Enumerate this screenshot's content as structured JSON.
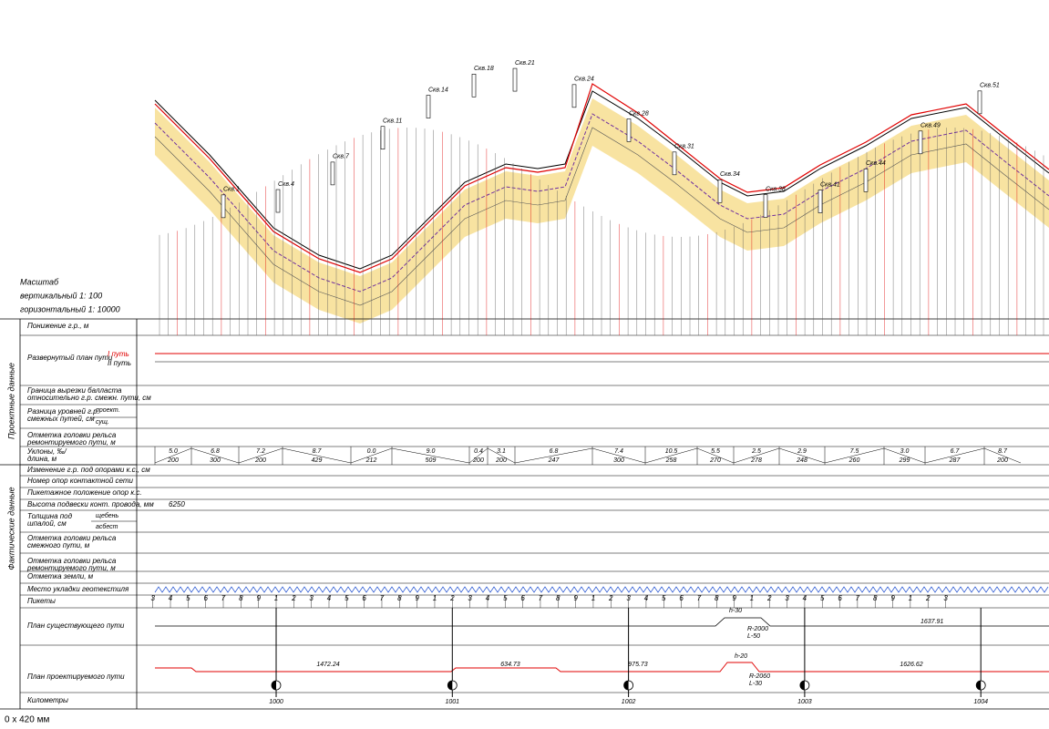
{
  "scale": {
    "title": "Масштаб",
    "vertical": "вертикальный 1: 100",
    "horizontal": "горизонтальный 1: 10000"
  },
  "side_groups": [
    "Проектные данные",
    "Фактические данные"
  ],
  "rows": [
    [
      "Понижение г.р., м"
    ],
    [
      "Развернутый план пути"
    ],
    [
      "Граница вырезки балласта",
      "относительно г.р. смежн. пути, см"
    ],
    [
      "Разница уровней г.р.",
      "смежных путей, см"
    ],
    [
      "Отметка головки рельса",
      "ремонтируемого пути, м"
    ],
    [
      "Уклоны, ‰/",
      "длина, м"
    ],
    [
      "Изменение г.р. под опорами к.с., см"
    ],
    [
      "Номер опор контактной сети"
    ],
    [
      "Пикетажное положение опор к.с."
    ],
    [
      "Высота подвески конт. провода, мм"
    ],
    [
      "Толщина под",
      "шпалой, см"
    ],
    [
      "Отметка головки рельса",
      "смежного пути, м"
    ],
    [
      "Отметка головки рельса",
      "ремонтируемого пути, м"
    ],
    [
      "Отметка земли, м"
    ],
    [
      "Место укладки геотекстиля"
    ],
    [
      "Пикеты"
    ],
    [
      "План существующего пути"
    ],
    [
      "План проектируемого пути"
    ],
    [
      "Километры"
    ]
  ],
  "track_legend": [
    "I путь",
    "II путь"
  ],
  "sub_labels": [
    "проект.",
    "сущ.",
    "щебень",
    "асбест"
  ],
  "suspension_height": "6250",
  "kilometers": [
    1000,
    1001,
    1002,
    1003,
    1004
  ],
  "pickets": [
    3,
    4,
    5,
    6,
    7,
    8,
    9,
    1,
    2,
    3,
    4,
    5,
    6,
    7,
    8,
    9,
    1,
    2,
    3,
    4,
    5,
    6,
    7,
    8,
    9,
    1,
    2,
    3,
    4,
    5,
    6,
    7,
    8,
    9,
    1,
    2,
    3,
    4,
    5,
    6,
    7,
    8,
    9,
    1,
    2,
    3
  ],
  "slopes": [
    {
      "grade": "5.0",
      "length": 200
    },
    {
      "grade": "6.8",
      "length": 300
    },
    {
      "grade": "7.2",
      "length": 200
    },
    {
      "grade": "8.7",
      "length": 429
    },
    {
      "grade": "0.0",
      "length": 212
    },
    {
      "grade": "9.0",
      "length": 509
    },
    {
      "grade": "0.4",
      "length": 200
    },
    {
      "grade": "3.1",
      "length": 200
    },
    {
      "grade": "6.8",
      "length": 247
    },
    {
      "grade": "7.4",
      "length": 300
    },
    {
      "grade": "10.5",
      "length": 258
    },
    {
      "grade": "5.5",
      "length": 270
    },
    {
      "grade": "2.5",
      "length": 278
    },
    {
      "grade": "2.9",
      "length": 248
    },
    {
      "grade": "7.5",
      "length": 260
    },
    {
      "grade": "3.0",
      "length": 299
    },
    {
      "grade": "6.7",
      "length": 287
    },
    {
      "grade": "8.7",
      "length": 200
    }
  ],
  "existing_plan": {
    "curve": "R-2000",
    "transition": "L-50",
    "offset": "h-30",
    "straight": "1637.91"
  },
  "design_plan": {
    "curve": "R-2060",
    "transition": "L-30",
    "offset": "h-20",
    "straights": [
      "1472.24",
      "634.73",
      "975.73",
      "1626.62"
    ]
  },
  "boreholes": [
    "Скв.1",
    "Скв.4",
    "Скв.7",
    "Скв.11",
    "Скв.14",
    "Скв.18",
    "Скв.21",
    "Скв.24",
    "Скв.28",
    "Скв.31",
    "Скв.34",
    "Скв.38",
    "Скв.41",
    "Скв.44",
    "Скв.49",
    "Скв.51"
  ],
  "status": "0 x 420 мм"
}
